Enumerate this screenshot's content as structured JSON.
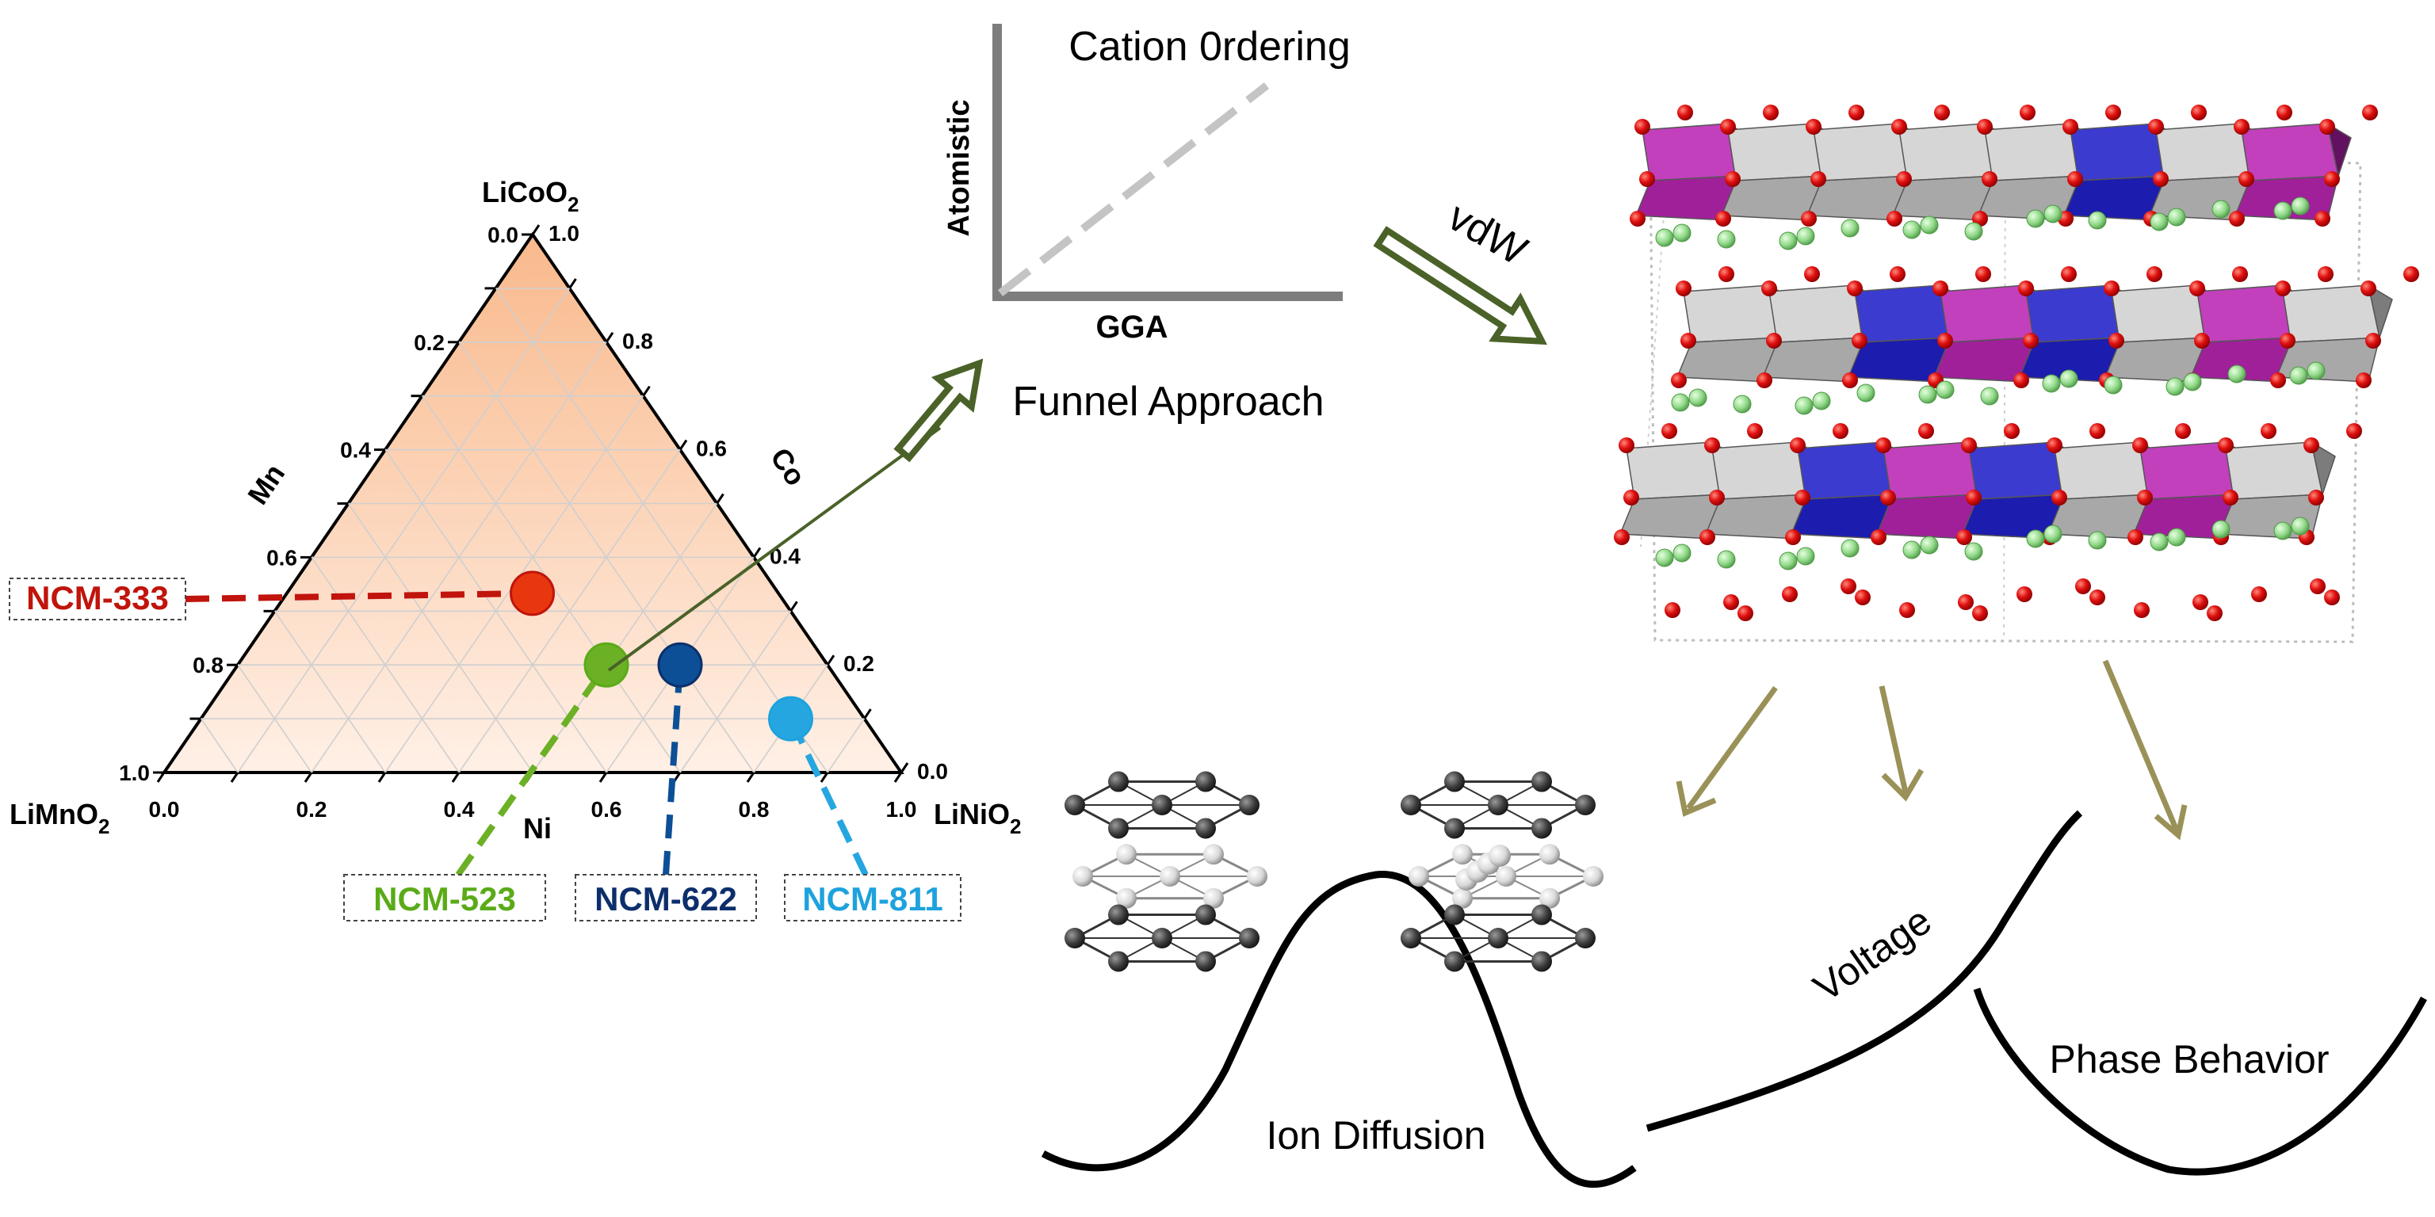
{
  "ternary": {
    "corners": {
      "top": {
        "base": "LiCoO",
        "sub": "2"
      },
      "left": {
        "base": "LiMnO",
        "sub": "2"
      },
      "right": {
        "base": "LiNiO",
        "sub": "2"
      }
    },
    "axes": {
      "left": "Mn",
      "right": "Co",
      "bottom": "Ni"
    },
    "left_ticks": [
      "0.0",
      "0.2",
      "0.4",
      "0.6",
      "0.8",
      "1.0"
    ],
    "right_ticks": [
      "1.0",
      "0.8",
      "0.6",
      "0.4",
      "0.2",
      "0.0"
    ],
    "bottom_ticks": [
      "0.0",
      "0.2",
      "0.4",
      "0.6",
      "0.8",
      "1.0"
    ],
    "compositions": [
      {
        "label": "NCM-333",
        "ni": 0.333,
        "co": 0.333,
        "mn": 0.333,
        "color": "#e8360e",
        "text_color": "#c0140c"
      },
      {
        "label": "NCM-523",
        "ni": 0.5,
        "co": 0.2,
        "mn": 0.3,
        "color": "#6cb026",
        "text_color": "#5aab18"
      },
      {
        "label": "NCM-622",
        "ni": 0.6,
        "co": 0.2,
        "mn": 0.2,
        "color": "#0d4f96",
        "text_color": "#0c2f6b"
      },
      {
        "label": "NCM-811",
        "ni": 0.8,
        "co": 0.1,
        "mn": 0.1,
        "color": "#25a6e0",
        "text_color": "#1ea2dd"
      }
    ]
  },
  "funnel": {
    "title": "Cation 0rdering",
    "y_label": "Atomistic",
    "x_label": "GGA",
    "caption": "Funnel Approach"
  },
  "arrow_label": "vdW",
  "properties": {
    "ion_diffusion": "Ion Diffusion",
    "voltage": "Voltage",
    "phase_behavior": "Phase Behavior"
  },
  "colors": {
    "triangle_fill_top": "#f9b98c",
    "triangle_fill_bottom": "#fff0e6",
    "funnel_arrow": "#4a6228",
    "property_arrow": "#9a9158",
    "octa_gray": "#a8a8a8",
    "octa_blue": "#1c1cae",
    "octa_purple": "#a0209a",
    "oxygen": "#e01010",
    "lithium": "#90d888"
  }
}
